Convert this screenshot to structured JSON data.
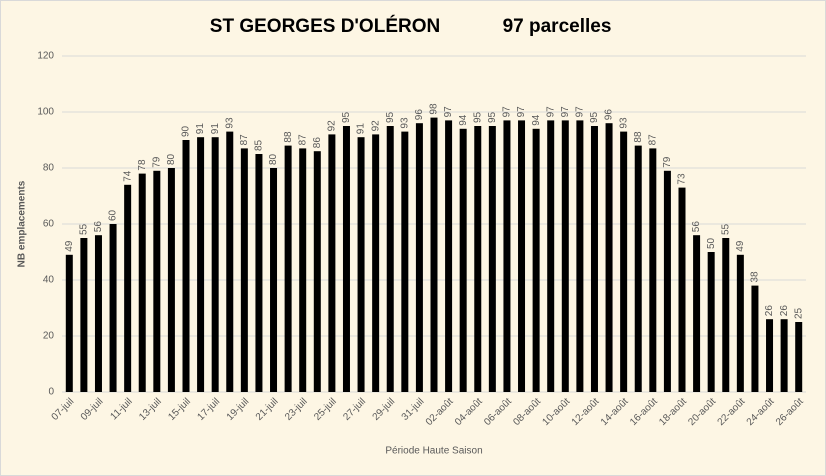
{
  "chart_data": {
    "type": "bar",
    "title": "ST GEORGES D'OLÉRON",
    "subtitle": "97 parcelles",
    "y_label": "NB emplacements",
    "x_label": "Période Haute Saison",
    "categories": [
      "07-juil",
      null,
      "09-juil",
      null,
      "11-juil",
      null,
      "13-juil",
      null,
      "15-juil",
      null,
      "17-juil",
      null,
      "19-juil",
      null,
      "21-juil",
      null,
      "23-juil",
      null,
      "25-juil",
      null,
      "27-juil",
      null,
      "29-juil",
      null,
      "31-juil",
      null,
      "02-août",
      null,
      "04-août",
      null,
      "06-août",
      null,
      "08-août",
      null,
      "10-août",
      null,
      "12-août",
      null,
      "14-août",
      null,
      "16-août",
      null,
      "18-août",
      null,
      "20-août",
      null,
      "22-août",
      null,
      "24-août",
      null,
      "26-août"
    ],
    "values": [
      49,
      55,
      56,
      60,
      74,
      78,
      79,
      80,
      90,
      91,
      91,
      93,
      87,
      85,
      80,
      88,
      87,
      86,
      92,
      95,
      91,
      92,
      95,
      93,
      96,
      98,
      97,
      94,
      95,
      95,
      97,
      97,
      94,
      97,
      97,
      97,
      95,
      96,
      93,
      88,
      87,
      79,
      73,
      56,
      50,
      55,
      49,
      38,
      26,
      26,
      25
    ],
    "color": "#000000",
    "ylim": [
      0,
      120
    ],
    "yticks": [
      0,
      20,
      40,
      60,
      80,
      100,
      120
    ],
    "grid": true
  }
}
